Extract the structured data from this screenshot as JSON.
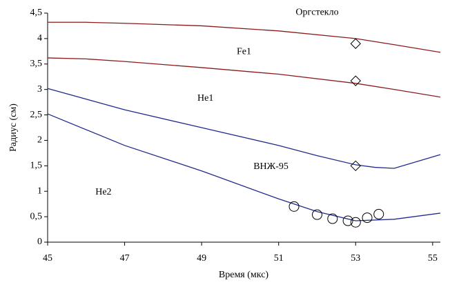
{
  "chart_data": {
    "type": "line",
    "xlabel": "Время (мкс)",
    "ylabel": "Радиус (см)",
    "xlim": [
      45,
      55.2
    ],
    "xticks": [
      45,
      47,
      49,
      51,
      53,
      55
    ],
    "ylim": [
      0,
      4.5
    ],
    "yticks": [
      0,
      {
        "value": 0.5,
        "label": "0,5"
      },
      1,
      {
        "value": 1.5,
        "label": "1,5"
      },
      2,
      {
        "value": 2.5,
        "label": "2,5"
      },
      3,
      {
        "value": 3.5,
        "label": "3,5"
      },
      4,
      {
        "value": 4.5,
        "label": "4,5"
      }
    ],
    "grid": false,
    "series": [
      {
        "color": "#8b1a1a",
        "x": [
          45,
          46,
          47,
          49,
          51,
          53,
          54,
          55.2
        ],
        "values": [
          4.32,
          4.32,
          4.3,
          4.25,
          4.15,
          4.0,
          3.88,
          3.73
        ]
      },
      {
        "color": "#8b1a1a",
        "x": [
          45,
          46,
          47,
          49,
          51,
          53,
          54,
          55.2
        ],
        "values": [
          3.62,
          3.6,
          3.55,
          3.43,
          3.3,
          3.12,
          3.0,
          2.85
        ]
      },
      {
        "color": "#1f2a8c",
        "x": [
          45,
          47,
          49,
          51,
          52,
          53,
          53.5,
          54,
          55.2
        ],
        "values": [
          3.02,
          2.6,
          2.25,
          1.9,
          1.7,
          1.52,
          1.47,
          1.45,
          1.72
        ]
      },
      {
        "color": "#1f2a8c",
        "x": [
          45,
          47,
          49,
          51,
          52,
          53,
          54,
          55.2
        ],
        "values": [
          2.52,
          1.9,
          1.4,
          0.85,
          0.6,
          0.42,
          0.45,
          0.57
        ]
      },
      {
        "marker": "diamond",
        "color": "#000000",
        "x": [
          53,
          53,
          53
        ],
        "values": [
          3.9,
          3.17,
          1.5
        ]
      },
      {
        "marker": "circle",
        "color": "#000000",
        "x": [
          51.4,
          52,
          52.4,
          52.8,
          53,
          53.3,
          53.6
        ],
        "values": [
          0.7,
          0.54,
          0.46,
          0.42,
          0.39,
          0.48,
          0.55
        ]
      }
    ],
    "annotations": [
      {
        "text": "Оргстекло",
        "x": 52.0,
        "y": 4.51
      },
      {
        "text": "Fe1",
        "x": 50.1,
        "y": 3.74
      },
      {
        "text": "He1",
        "x": 49.1,
        "y": 2.82
      },
      {
        "text": "ВНЖ-95",
        "x": 50.8,
        "y": 1.48
      },
      {
        "text": "He2",
        "x": 46.45,
        "y": 0.98
      }
    ]
  }
}
